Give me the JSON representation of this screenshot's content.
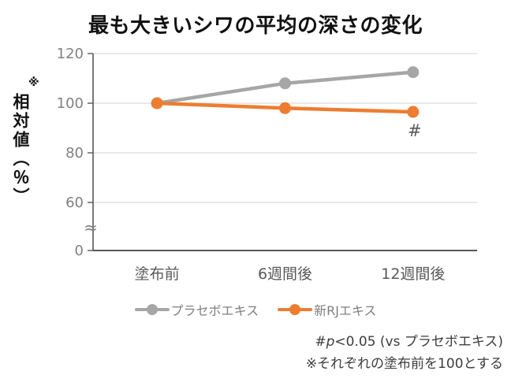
{
  "title": "最も大きいシワの平均の深さの変化",
  "y_axis": {
    "note_mark": "※",
    "label": "相対値（％）"
  },
  "chart_data": {
    "type": "line",
    "title": "最も大きいシワの平均の深さの変化",
    "categories": [
      "塗布前",
      "6週間後",
      "12週間後"
    ],
    "series": [
      {
        "name": "プラセボエキス",
        "color": "#a6a6a6",
        "values": [
          100,
          108,
          112.5
        ]
      },
      {
        "name": "新RJエキス",
        "color": "#ed7d31",
        "values": [
          100,
          98,
          96.5
        ]
      }
    ],
    "xlabel": "",
    "ylabel": "※相対値（％）",
    "yticks": [
      120,
      100,
      80,
      60,
      0
    ],
    "ylim": [
      0,
      120
    ],
    "axis_break": {
      "between": [
        0,
        60
      ],
      "symbol": "≈"
    },
    "grid": true,
    "legend_position": "bottom",
    "annotation": {
      "text": "#",
      "series_index": 1,
      "point_index": 2
    }
  },
  "footnotes": {
    "sig_hash": "#",
    "sig_p": "p",
    "sig_rest": "<0.05 (vs プラセボエキス)",
    "base_note": "※それぞれの塗布前を100とする"
  }
}
